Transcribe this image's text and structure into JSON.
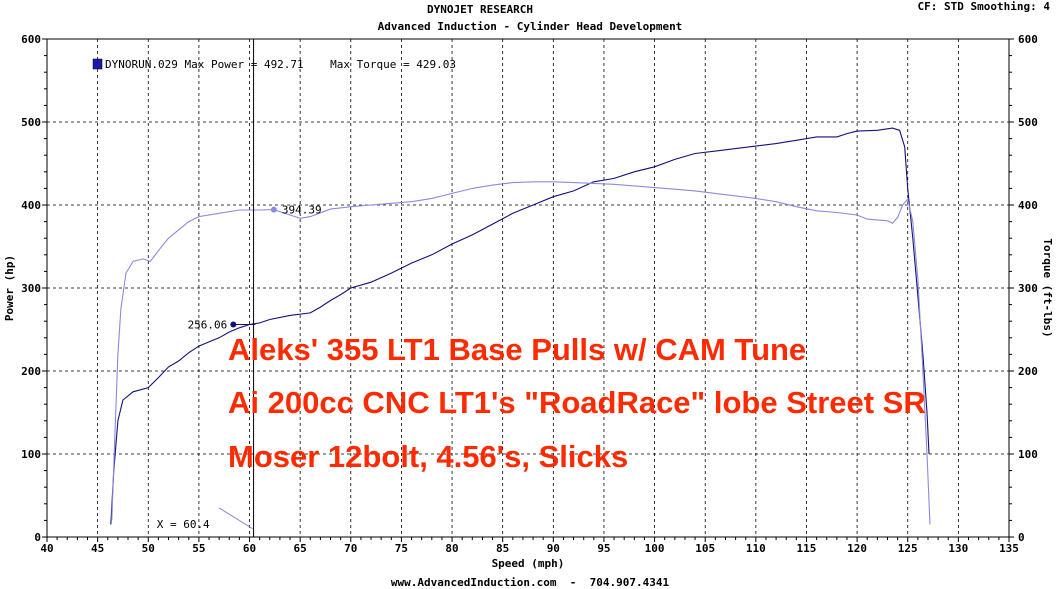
{
  "header": {
    "title": "DYNOJET RESEARCH",
    "subtitle": "Advanced Induction - Cylinder Head Development",
    "cf_smoothing": "CF: STD  Smoothing: 4"
  },
  "footer": {
    "text": "www.AdvancedInduction.com  -  704.907.4341"
  },
  "legend": {
    "run_label": "DYNORUN.029 Max Power = 492.71    Max Torque = 429.03",
    "swatch_color": "#1a1aa8"
  },
  "annotations": {
    "power_marker_label": "256.06",
    "torque_marker_label": "394.39",
    "cursor_label": "X = 60.4"
  },
  "overlay": {
    "line1": "Aleks' 355 LT1 Base Pulls w/ CAM Tune",
    "line2": "Ai 200cc CNC LT1's \"RoadRace\" lobe Street SR",
    "line3": "Moser 12bolt, 4.56's, Slicks",
    "color": "#ff2a00"
  },
  "chart_data": {
    "type": "line",
    "xlabel": "Speed (mph)",
    "ylabel": "Power (hp)",
    "y2label": "Torque (ft-lbs)",
    "xlim": [
      40,
      135
    ],
    "ylim": [
      0,
      600
    ],
    "y2lim": [
      0,
      600
    ],
    "x_ticks": [
      40,
      45,
      50,
      55,
      60,
      65,
      70,
      75,
      80,
      85,
      90,
      95,
      100,
      105,
      110,
      115,
      120,
      125,
      130,
      135
    ],
    "y_ticks": [
      0,
      100,
      200,
      300,
      400,
      500,
      600
    ],
    "grid": true,
    "cursor_x": 60.4,
    "series": [
      {
        "role": "power",
        "axis": "left",
        "color": "#12127a",
        "marker": {
          "x": 58.4,
          "y": 256.06
        },
        "points": [
          [
            46.3,
            15
          ],
          [
            46.6,
            80
          ],
          [
            47,
            140
          ],
          [
            47.5,
            165
          ],
          [
            48.5,
            175
          ],
          [
            50,
            180
          ],
          [
            51,
            192
          ],
          [
            52,
            205
          ],
          [
            53,
            212
          ],
          [
            54,
            222
          ],
          [
            55,
            230
          ],
          [
            56,
            235
          ],
          [
            57,
            240
          ],
          [
            58,
            247
          ],
          [
            59,
            252
          ],
          [
            60,
            256
          ],
          [
            61,
            258
          ],
          [
            62,
            262
          ],
          [
            64,
            267
          ],
          [
            66,
            270
          ],
          [
            67,
            277
          ],
          [
            68,
            285
          ],
          [
            69,
            292
          ],
          [
            70,
            300
          ],
          [
            72,
            307
          ],
          [
            74,
            318
          ],
          [
            76,
            330
          ],
          [
            78,
            340
          ],
          [
            80,
            353
          ],
          [
            82,
            364
          ],
          [
            84,
            377
          ],
          [
            86,
            390
          ],
          [
            88,
            400
          ],
          [
            90,
            410
          ],
          [
            92,
            417
          ],
          [
            94,
            428
          ],
          [
            96,
            432
          ],
          [
            98,
            440
          ],
          [
            100,
            446
          ],
          [
            102,
            455
          ],
          [
            104,
            462
          ],
          [
            106,
            465
          ],
          [
            108,
            468
          ],
          [
            110,
            471
          ],
          [
            112,
            474
          ],
          [
            114,
            478
          ],
          [
            116,
            482
          ],
          [
            118,
            482
          ],
          [
            119,
            486
          ],
          [
            120,
            489
          ],
          [
            122,
            490
          ],
          [
            123.5,
            492.7
          ],
          [
            124.2,
            490
          ],
          [
            124.7,
            470
          ],
          [
            125,
            420
          ],
          [
            125.5,
            360
          ],
          [
            126,
            290
          ],
          [
            126.5,
            220
          ],
          [
            126.9,
            150
          ],
          [
            127.1,
            100
          ]
        ]
      },
      {
        "role": "torque",
        "axis": "right",
        "color": "#8a8ae0",
        "marker": {
          "x": 62.4,
          "y": 394.39
        },
        "points": [
          [
            46.4,
            20
          ],
          [
            46.7,
            120
          ],
          [
            47,
            220
          ],
          [
            47.3,
            275
          ],
          [
            47.8,
            318
          ],
          [
            48.5,
            332
          ],
          [
            49.5,
            335
          ],
          [
            50.2,
            332
          ],
          [
            51,
            345
          ],
          [
            52,
            360
          ],
          [
            53,
            370
          ],
          [
            54,
            380
          ],
          [
            55,
            386
          ],
          [
            57,
            390
          ],
          [
            59,
            394
          ],
          [
            61,
            394
          ],
          [
            62.4,
            394.4
          ],
          [
            64,
            388
          ],
          [
            65,
            384
          ],
          [
            66,
            386
          ],
          [
            68,
            395
          ],
          [
            70,
            398
          ],
          [
            72,
            400
          ],
          [
            74,
            402
          ],
          [
            76,
            404
          ],
          [
            78,
            408
          ],
          [
            80,
            414
          ],
          [
            82,
            420
          ],
          [
            84,
            424
          ],
          [
            86,
            427
          ],
          [
            88,
            428
          ],
          [
            90,
            428
          ],
          [
            92,
            427
          ],
          [
            94,
            426
          ],
          [
            96,
            425
          ],
          [
            98,
            423
          ],
          [
            100,
            421
          ],
          [
            102,
            419
          ],
          [
            104,
            417
          ],
          [
            106,
            414
          ],
          [
            108,
            411
          ],
          [
            110,
            408
          ],
          [
            112,
            404
          ],
          [
            114,
            398
          ],
          [
            116,
            393
          ],
          [
            118,
            391
          ],
          [
            120,
            388
          ],
          [
            121,
            383
          ],
          [
            122,
            382
          ],
          [
            123,
            381
          ],
          [
            123.5,
            378
          ],
          [
            124,
            385
          ],
          [
            124.5,
            400
          ],
          [
            125,
            407
          ],
          [
            125.5,
            380
          ],
          [
            126,
            310
          ],
          [
            126.5,
            200
          ],
          [
            126.9,
            100
          ],
          [
            127.2,
            15
          ]
        ]
      }
    ]
  }
}
